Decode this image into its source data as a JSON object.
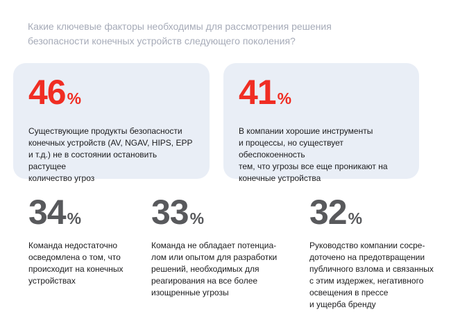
{
  "colors": {
    "background": "#ffffff",
    "card_background": "#e9eef6",
    "accent_red": "#f02d23",
    "stat_number_gray": "#58595c",
    "body_text": "#1b1b1d",
    "title_gray": "#a6abb8"
  },
  "title": {
    "lines": [
      "Какие ключевые факторы необходимы для рассмотрения решения",
      "безопасности конечных устройств следующего поколения?"
    ]
  },
  "highlight_cards": [
    {
      "value": "46",
      "unit": "%",
      "description_lines": [
        "Существующие продукты безопасности",
        "конечных устройств (AV, NGAV, HIPS, EPP",
        "и т.д.) не в состоянии остановить растущее",
        "количество угроз"
      ]
    },
    {
      "value": "41",
      "unit": "%",
      "description_lines": [
        "В компании хорошие инструменты",
        "и процессы, но существует обеспокоенность",
        "тем, что угрозы все еще проникают на",
        "конечные устройства"
      ]
    }
  ],
  "stats": [
    {
      "value": "34",
      "unit": "%",
      "description_lines": [
        "Команда недостаточно",
        "осведомлена о том, что",
        "происходит на конечных",
        "устройствах"
      ]
    },
    {
      "value": "33",
      "unit": "%",
      "description_lines": [
        "Команда не обладает потенциа-",
        "лом или опытом для разработки",
        "решений, необходимых для",
        "реагирования на все более",
        "изощренные угрозы"
      ]
    },
    {
      "value": "32",
      "unit": "%",
      "description_lines": [
        "Руководство компании сосре-",
        "доточено на предотвращении",
        "публичного взлома и связанных",
        "с этим издержек, негативного",
        "освещения в прессе",
        "и ущерба бренду"
      ]
    }
  ],
  "chart_data": {
    "type": "table",
    "title": "Какие ключевые факторы необходимы для рассмотрения решения безопасности конечных устройств следующего поколения?",
    "unit": "%",
    "categories": [
      "Существующие продукты безопасности конечных устройств (AV, NGAV, HIPS, EPP и т.д.) не в состоянии остановить растущее количество угроз",
      "В компании хорошие инструменты и процессы, но существует обеспокоенность тем, что угрозы все еще проникают на конечные устройства",
      "Команда недостаточно осведомлена о том, что происходит на конечных устройствах",
      "Команда не обладает потенциалом или опытом для разработки решений, необходимых для реагирования на все более изощренные угрозы",
      "Руководство компании сосредоточено на предотвращении публичного взлома и связанных с этим издержек, негативного освещения в прессе и ущерба бренду"
    ],
    "values": [
      46,
      41,
      34,
      33,
      32
    ],
    "layout_hints": {
      "highlighted_values": [
        46,
        41
      ],
      "highlight_style": "red number on light blue card",
      "secondary_style": "gray number on white background"
    }
  }
}
